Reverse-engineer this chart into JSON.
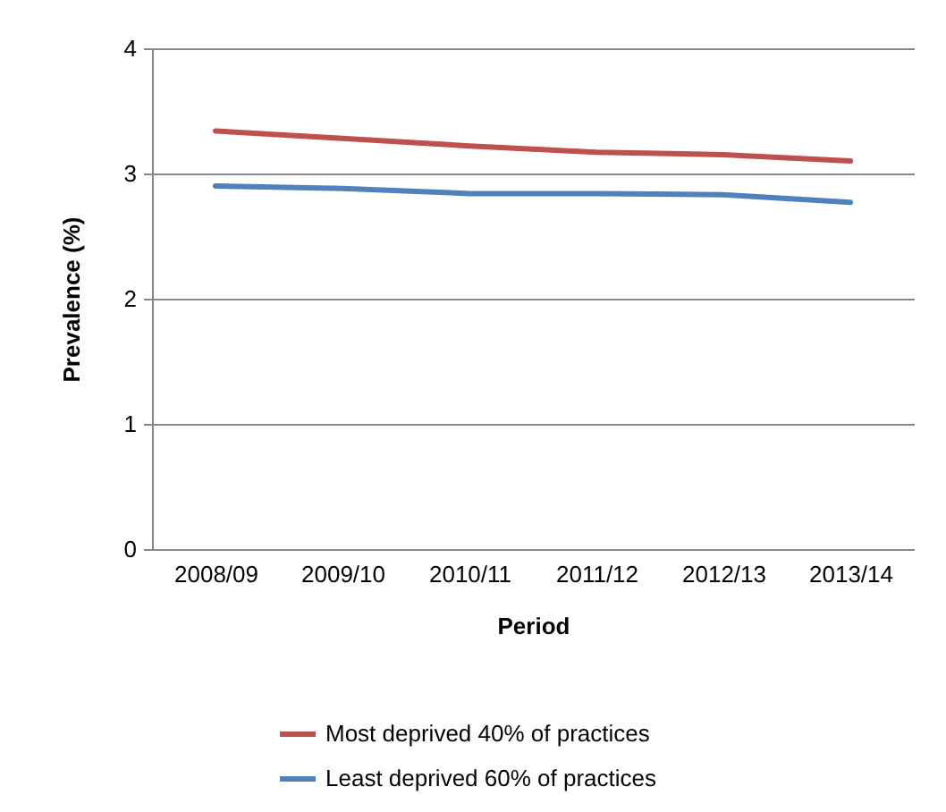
{
  "chart_data": {
    "type": "line",
    "xlabel": "Period",
    "ylabel": "Prevalence (%)",
    "categories": [
      "2008/09",
      "2009/10",
      "2010/11",
      "2011/12",
      "2012/13",
      "2013/14"
    ],
    "series": [
      {
        "name": "Most deprived 40% of practices",
        "color": "#c0504d",
        "values": [
          3.34,
          3.28,
          3.22,
          3.17,
          3.15,
          3.1
        ]
      },
      {
        "name": "Least deprived 60% of practices",
        "color": "#4f81bd",
        "values": [
          2.9,
          2.88,
          2.84,
          2.84,
          2.83,
          2.77
        ]
      }
    ],
    "ylim": [
      0,
      4
    ],
    "yticks": [
      0,
      1,
      2,
      3,
      4
    ],
    "grid": "y",
    "legend": "bottom",
    "marker": "none",
    "line_style": "solid"
  }
}
